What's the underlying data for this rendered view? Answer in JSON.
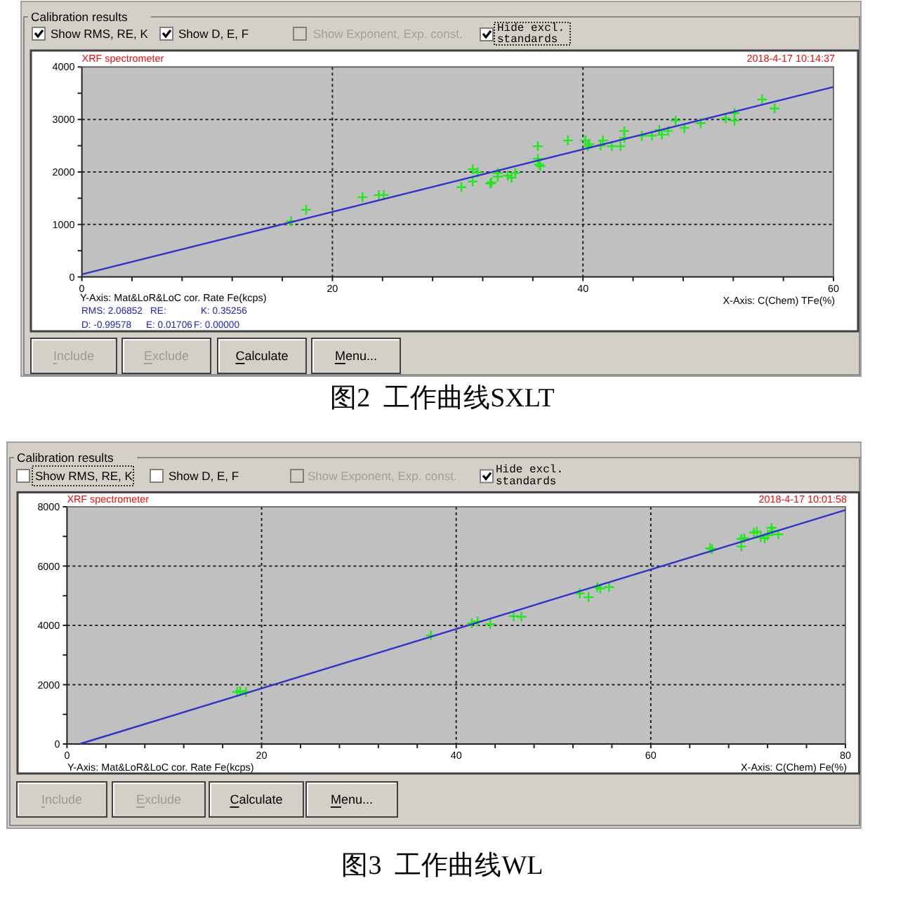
{
  "chart_data": [
    {
      "type": "scatter",
      "title": "图2  工作曲线SXLT",
      "xlabel": "X-Axis: C(Chem) TFe(%)",
      "annotations": [
        "Calibration results",
        "Show RMS, RE, K",
        "Show D, E, F",
        "Show Exponent, Exp. const.",
        "Hide excl.",
        "standards",
        "Include",
        "Exclude",
        "Calculate",
        "Menu...",
        "XRF spectrometer",
        "2018-4-17 10:14:37",
        "Y-Axis: Mat&LoR&LoC cor. Rate Fe(kcps)",
        "RMS: 2.06852",
        "RE:",
        "K: 0.35256",
        "D: -0.99578",
        "E: 0.01706",
        "F: 0.00000"
      ],
      "xlim": [
        0,
        60
      ],
      "ylim": [
        0,
        4000
      ],
      "xticks": [
        0,
        {
          "value": 4,
          "label": null
        },
        {
          "value": 8,
          "label": null
        },
        {
          "value": 12,
          "label": null
        },
        {
          "value": 16,
          "label": null
        },
        20,
        {
          "value": 24,
          "label": null
        },
        {
          "value": 28,
          "label": null
        },
        {
          "value": 32,
          "label": null
        },
        {
          "value": 36,
          "label": null
        },
        40,
        {
          "value": 44,
          "label": null
        },
        {
          "value": 48,
          "label": null
        },
        {
          "value": 52,
          "label": null
        },
        {
          "value": 56,
          "label": null
        },
        60
      ],
      "yticks": [
        0,
        {
          "value": 500,
          "label": null
        },
        1000,
        {
          "value": 1500,
          "label": null
        },
        2000,
        {
          "value": 2500,
          "label": null
        },
        3000,
        {
          "value": 3500,
          "label": null
        },
        4000
      ],
      "grid": true,
      "series": [
        {
          "type": "scatter",
          "marker": "cross",
          "color": "#22e622",
          "x": [
            16.7,
            17.9,
            22.4,
            23.7,
            24.1,
            30.3,
            31.2,
            31.2,
            31.6,
            32.7,
            32.6,
            33.2,
            33.2,
            34.0,
            34.3,
            34.6,
            36.4,
            36.4,
            36.5,
            36.6,
            38.8,
            40.2,
            40.4,
            40.5,
            41.4,
            41.6,
            42.3,
            43.0,
            43.3,
            43.3,
            44.7,
            45.5,
            46.1,
            46.3,
            46.8,
            47.4,
            48.1,
            49.4,
            51.4,
            52.1,
            52.1,
            54.3,
            55.3
          ],
          "values": [
            1060,
            1280,
            1520,
            1560,
            1560,
            1710,
            2050,
            1820,
            1990,
            1800,
            1780,
            1980,
            1910,
            1930,
            1890,
            1980,
            2490,
            2250,
            2140,
            2110,
            2600,
            2600,
            2490,
            2530,
            2500,
            2600,
            2490,
            2490,
            2780,
            2650,
            2690,
            2690,
            2800,
            2710,
            2780,
            2980,
            2840,
            2930,
            3020,
            2980,
            3120,
            3380,
            3210
          ]
        },
        {
          "type": "line",
          "color": "#3232c8",
          "x": [
            0,
            60
          ],
          "values": [
            50,
            3620
          ]
        }
      ]
    },
    {
      "type": "scatter",
      "title": "图3  工作曲线WL",
      "xlabel": "X-Axis: C(Chem) Fe(%)",
      "annotations": [
        "Calibration results",
        "Show RMS, RE, K",
        "Show D, E, F",
        "Show Exponent, Exp. const.",
        "Hide excl.",
        "standards",
        "Include",
        "Exclude",
        "Calculate",
        "Menu...",
        "XRF spectrometer",
        "2018-4-17 10:01:58",
        "Y-Axis: Mat&LoR&LoC cor. Rate Fe(kcps)"
      ],
      "xlim": [
        0,
        80
      ],
      "ylim": [
        0,
        8000
      ],
      "xticks": [
        0,
        {
          "value": 4,
          "label": null
        },
        {
          "value": 8,
          "label": null
        },
        {
          "value": 12,
          "label": null
        },
        {
          "value": 16,
          "label": null
        },
        20,
        {
          "value": 24,
          "label": null
        },
        {
          "value": 28,
          "label": null
        },
        {
          "value": 32,
          "label": null
        },
        {
          "value": 36,
          "label": null
        },
        40,
        {
          "value": 44,
          "label": null
        },
        {
          "value": 48,
          "label": null
        },
        {
          "value": 52,
          "label": null
        },
        {
          "value": 56,
          "label": null
        },
        60,
        {
          "value": 64,
          "label": null
        },
        {
          "value": 68,
          "label": null
        },
        {
          "value": 72,
          "label": null
        },
        {
          "value": 76,
          "label": null
        },
        80
      ],
      "yticks": [
        0,
        {
          "value": 1000,
          "label": null
        },
        2000,
        {
          "value": 3000,
          "label": null
        },
        4000,
        {
          "value": 5000,
          "label": null
        },
        6000,
        {
          "value": 7000,
          "label": null
        },
        8000
      ],
      "grid": true,
      "series": [
        {
          "type": "scatter",
          "marker": "cross",
          "color": "#22e622",
          "x": [
            17.5,
            17.8,
            18.4,
            37.4,
            41.6,
            42.2,
            43.5,
            45.9,
            46.7,
            52.7,
            53.6,
            54.5,
            54.8,
            55.7,
            66.1,
            66.3,
            69.3,
            69.3,
            69.6,
            70.6,
            70.9,
            71.3,
            71.7,
            72.0,
            72.4,
            72.5,
            73.1
          ],
          "values": [
            1750,
            1780,
            1750,
            3660,
            4070,
            4130,
            4040,
            4310,
            4290,
            5080,
            4950,
            5290,
            5240,
            5290,
            6600,
            6570,
            6910,
            6660,
            6940,
            7130,
            7160,
            6970,
            6940,
            7040,
            7290,
            7180,
            7070
          ]
        },
        {
          "type": "line",
          "color": "#3232c8",
          "x": [
            1.3,
            80
          ],
          "values": [
            0,
            7890
          ]
        }
      ]
    }
  ]
}
